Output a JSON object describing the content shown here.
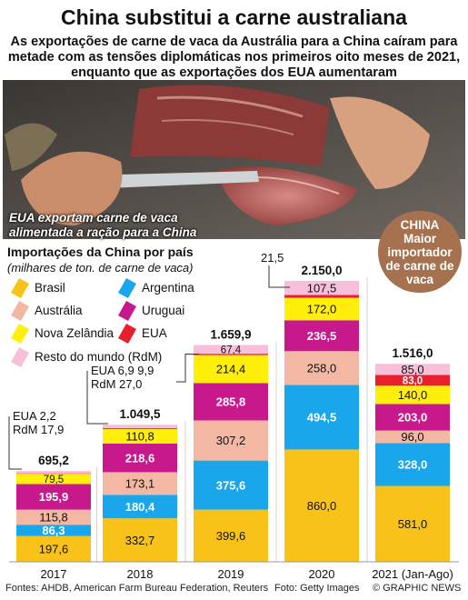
{
  "header": {
    "title": "China substitui a carne australiana",
    "subtitle": "As exportações de carne de vaca da Austrália para a China caíram para metade com as tensões diplomáticas nos primeiros oito meses de 2021, enquanto que as exportações dos EUA aumentaram"
  },
  "photo": {
    "caption_line1": "EUA exportam carne de vaca",
    "caption_line2": "alimentada a ração para a China"
  },
  "callout": {
    "line1": "CHINA",
    "line2": "Maior",
    "line3": "importador",
    "line4": "de carne de",
    "line5": "vaca"
  },
  "footer": {
    "sources": "Fontes: AHDB, American Farm Bureau Federation, Reuters",
    "photo_credit": "Foto: Getty Images",
    "copyright": "© GRAPHIC NEWS"
  },
  "colors": {
    "brasil": "#f9c218",
    "australia": "#f2b8a3",
    "nova_zelandia": "#ffef0a",
    "resto": "#f7bfd9",
    "argentina": "#19a6ea",
    "uruguai": "#c8198c",
    "eua": "#e8202e"
  },
  "chart_data": {
    "type": "bar",
    "stacked": true,
    "title": "Importações da China por país",
    "subtitle": "(milhares de ton. de carne de vaca)",
    "categories": [
      "2017",
      "2018",
      "2019",
      "2020",
      "2021 (Jan-Ago)"
    ],
    "totals": [
      "695,2",
      "1.049,5",
      "1.659,9",
      "2.150,0",
      "1.516,0"
    ],
    "series": [
      {
        "name": "Brasil",
        "key": "brasil",
        "values": [
          197.6,
          332.7,
          399.6,
          860.0,
          581.0
        ],
        "labels": [
          "197,6",
          "332,7",
          "399,6",
          "860,0",
          "581,0"
        ]
      },
      {
        "name": "Argentina",
        "key": "argentina",
        "values": [
          86.3,
          180.4,
          375.6,
          494.5,
          328.0
        ],
        "labels": [
          "86,3",
          "180,4",
          "375,6",
          "494,5",
          "328,0"
        ]
      },
      {
        "name": "Austrália",
        "key": "australia",
        "values": [
          115.8,
          173.1,
          307.2,
          258.0,
          96.0
        ],
        "labels": [
          "115,8",
          "173,1",
          "307,2",
          "258,0",
          "96,0"
        ]
      },
      {
        "name": "Uruguai",
        "key": "uruguai",
        "values": [
          195.9,
          218.6,
          285.8,
          236.5,
          203.0
        ],
        "labels": [
          "195,9",
          "218,6",
          "285,8",
          "236,5",
          "203,0"
        ]
      },
      {
        "name": "Nova Zelândia",
        "key": "nova_zelandia",
        "values": [
          79.5,
          110.8,
          214.4,
          172.0,
          140.0
        ],
        "labels": [
          "79,5",
          "110,8",
          "214,4",
          "172,0",
          "140,0"
        ]
      },
      {
        "name": "EUA",
        "key": "eua",
        "values": [
          2.2,
          6.9,
          9.9,
          21.5,
          83.0
        ],
        "labels": [
          "",
          "",
          "",
          "",
          "83,0"
        ]
      },
      {
        "name": "Resto do mundo (RdM)",
        "key": "resto",
        "values": [
          17.9,
          27.0,
          67.4,
          107.5,
          85.0
        ],
        "labels": [
          "",
          "",
          "67,4",
          "107,5",
          "85,0"
        ]
      }
    ],
    "annotations": [
      {
        "text": "EUA   2,2"
      },
      {
        "text": "RdM  17,9"
      },
      {
        "text": "EUA    6,9     9,9"
      },
      {
        "text": "RdM  27,0"
      },
      {
        "text": "21,5"
      }
    ],
    "legend": [
      {
        "name": "Brasil",
        "key": "brasil"
      },
      {
        "name": "Argentina",
        "key": "argentina"
      },
      {
        "name": "Austrália",
        "key": "australia"
      },
      {
        "name": "Uruguai",
        "key": "uruguai"
      },
      {
        "name": "Nova Zelândia",
        "key": "nova_zelandia"
      },
      {
        "name": "EUA",
        "key": "eua"
      },
      {
        "name": "Resto do mundo (RdM)",
        "key": "resto"
      }
    ],
    "legend_placement": "top-left",
    "ylim": [
      0,
      2150
    ],
    "grid": false
  }
}
